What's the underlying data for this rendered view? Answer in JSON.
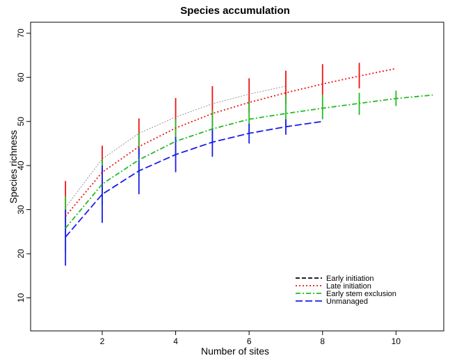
{
  "chart_data": {
    "type": "line",
    "title": "Species accumulation",
    "xlabel": "Number of sites",
    "ylabel": "Species richness",
    "xlim": [
      0.05,
      11.3
    ],
    "ylim": [
      2.5,
      72.5
    ],
    "x_ticks": [
      2,
      4,
      6,
      8,
      10
    ],
    "y_ticks": [
      10,
      20,
      30,
      40,
      50,
      60,
      70
    ],
    "grid": false,
    "legend_position": "bottom-right",
    "series": [
      {
        "name": "Early initiation",
        "color": "#000000",
        "dash": "dashed-thin",
        "x": [
          1,
          2,
          3,
          4,
          5,
          6,
          7
        ],
        "y": [
          30.5,
          41.5,
          47.3,
          51.0,
          54.0,
          56.2,
          58.0
        ],
        "err_low": [],
        "err_high": []
      },
      {
        "name": "Late initiation",
        "color": "#ee1111",
        "dash": "dotted",
        "x": [
          1,
          2,
          3,
          4,
          5,
          6,
          7,
          8,
          9,
          10
        ],
        "y": [
          28.5,
          38.5,
          44.3,
          48.5,
          51.8,
          54.3,
          56.5,
          58.5,
          60.3,
          62.0
        ],
        "err_low": [
          27.5,
          38.0,
          42.5,
          46.0,
          49.0,
          52.0,
          54.0,
          56.0,
          57.5,
          null
        ],
        "err_high": [
          36.5,
          44.5,
          50.7,
          55.3,
          58.0,
          59.8,
          61.5,
          63.0,
          63.3,
          null
        ]
      },
      {
        "name": "Early stem exclusion",
        "color": "#22bb22",
        "dash": "dashdot",
        "x": [
          1,
          2,
          3,
          4,
          5,
          6,
          7,
          8,
          9,
          10,
          11
        ],
        "y": [
          25.8,
          35.8,
          41.3,
          45.5,
          48.3,
          50.5,
          51.8,
          53.0,
          54.1,
          55.2,
          56.0
        ],
        "err_low": [
          20.5,
          31.0,
          37.5,
          42.0,
          45.0,
          47.5,
          49.0,
          50.5,
          51.5,
          53.5,
          null
        ],
        "err_high": [
          33.0,
          41.5,
          47.5,
          50.5,
          52.5,
          54.5,
          56.0,
          56.0,
          56.5,
          57.0,
          null
        ]
      },
      {
        "name": "Unmanaged",
        "color": "#1a1aee",
        "dash": "longdash",
        "x": [
          1,
          2,
          3,
          4,
          5,
          6,
          7,
          8
        ],
        "y": [
          23.8,
          33.5,
          38.8,
          42.5,
          45.3,
          47.3,
          48.8,
          50.0
        ],
        "err_low": [
          17.3,
          27.0,
          33.5,
          38.5,
          42.0,
          45.0,
          47.0,
          50.0
        ],
        "err_high": [
          30.0,
          40.0,
          44.0,
          46.5,
          48.5,
          49.5,
          50.5,
          50.0
        ]
      }
    ]
  }
}
